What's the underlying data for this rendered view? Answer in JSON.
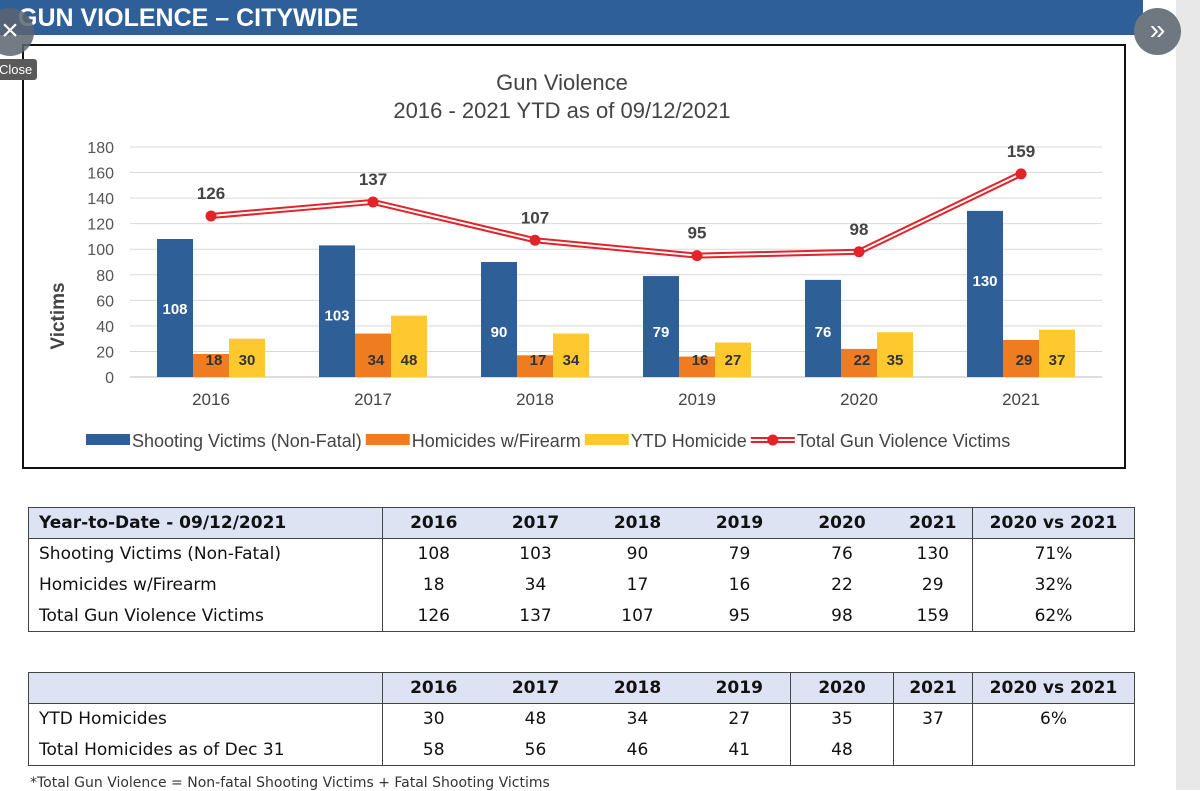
{
  "header": {
    "title": "GUN VIOLENCE – CITYWIDE"
  },
  "overlay": {
    "close_label": "Close",
    "close_icon": "×",
    "next_icon": "»"
  },
  "chart_data": {
    "type": "bar",
    "title": "Gun Violence",
    "subtitle": "2016 - 2021 YTD as of 09/12/2021",
    "ylabel": "Victims",
    "xlabel": "",
    "ylim": [
      0,
      180
    ],
    "yticks": [
      0,
      20,
      40,
      60,
      80,
      100,
      120,
      140,
      160,
      180
    ],
    "categories": [
      "2016",
      "2017",
      "2018",
      "2019",
      "2020",
      "2021"
    ],
    "series": [
      {
        "name": "Shooting Victims (Non-Fatal)",
        "type": "bar",
        "color": "#2e5f97",
        "values": [
          108,
          103,
          90,
          79,
          76,
          130
        ]
      },
      {
        "name": "Homicides w/Firearm",
        "type": "bar",
        "color": "#f07c22",
        "values": [
          18,
          34,
          17,
          16,
          22,
          29
        ]
      },
      {
        "name": "YTD Homicide",
        "type": "bar",
        "color": "#fec92f",
        "values": [
          30,
          48,
          34,
          27,
          35,
          37
        ]
      },
      {
        "name": "Total Gun Violence Victims",
        "type": "line",
        "color": "#e3232a",
        "values": [
          126,
          137,
          107,
          95,
          98,
          159
        ]
      }
    ],
    "grid": true,
    "legend": "bottom"
  },
  "table1": {
    "header": [
      "Year-to-Date - 09/12/2021",
      "2016",
      "2017",
      "2018",
      "2019",
      "2020",
      "2021",
      "2020 vs 2021"
    ],
    "rows": [
      [
        "Shooting Victims (Non-Fatal)",
        "108",
        "103",
        "90",
        "79",
        "76",
        "130",
        "71%"
      ],
      [
        "Homicides w/Firearm",
        "18",
        "34",
        "17",
        "16",
        "22",
        "29",
        "32%"
      ],
      [
        "Total Gun Violence Victims",
        "126",
        "137",
        "107",
        "95",
        "98",
        "159",
        "62%"
      ]
    ]
  },
  "table2": {
    "header": [
      "",
      "2016",
      "2017",
      "2018",
      "2019",
      "2020",
      "2021",
      "2020 vs 2021"
    ],
    "rows": [
      [
        "YTD Homicides",
        "30",
        "48",
        "34",
        "27",
        "35",
        "37",
        "6%"
      ],
      [
        "Total Homicides as of Dec 31",
        "58",
        "56",
        "46",
        "41",
        "48",
        "",
        ""
      ]
    ]
  },
  "footnote": "*Total Gun Violence = Non-fatal Shooting Victims + Fatal Shooting Victims"
}
